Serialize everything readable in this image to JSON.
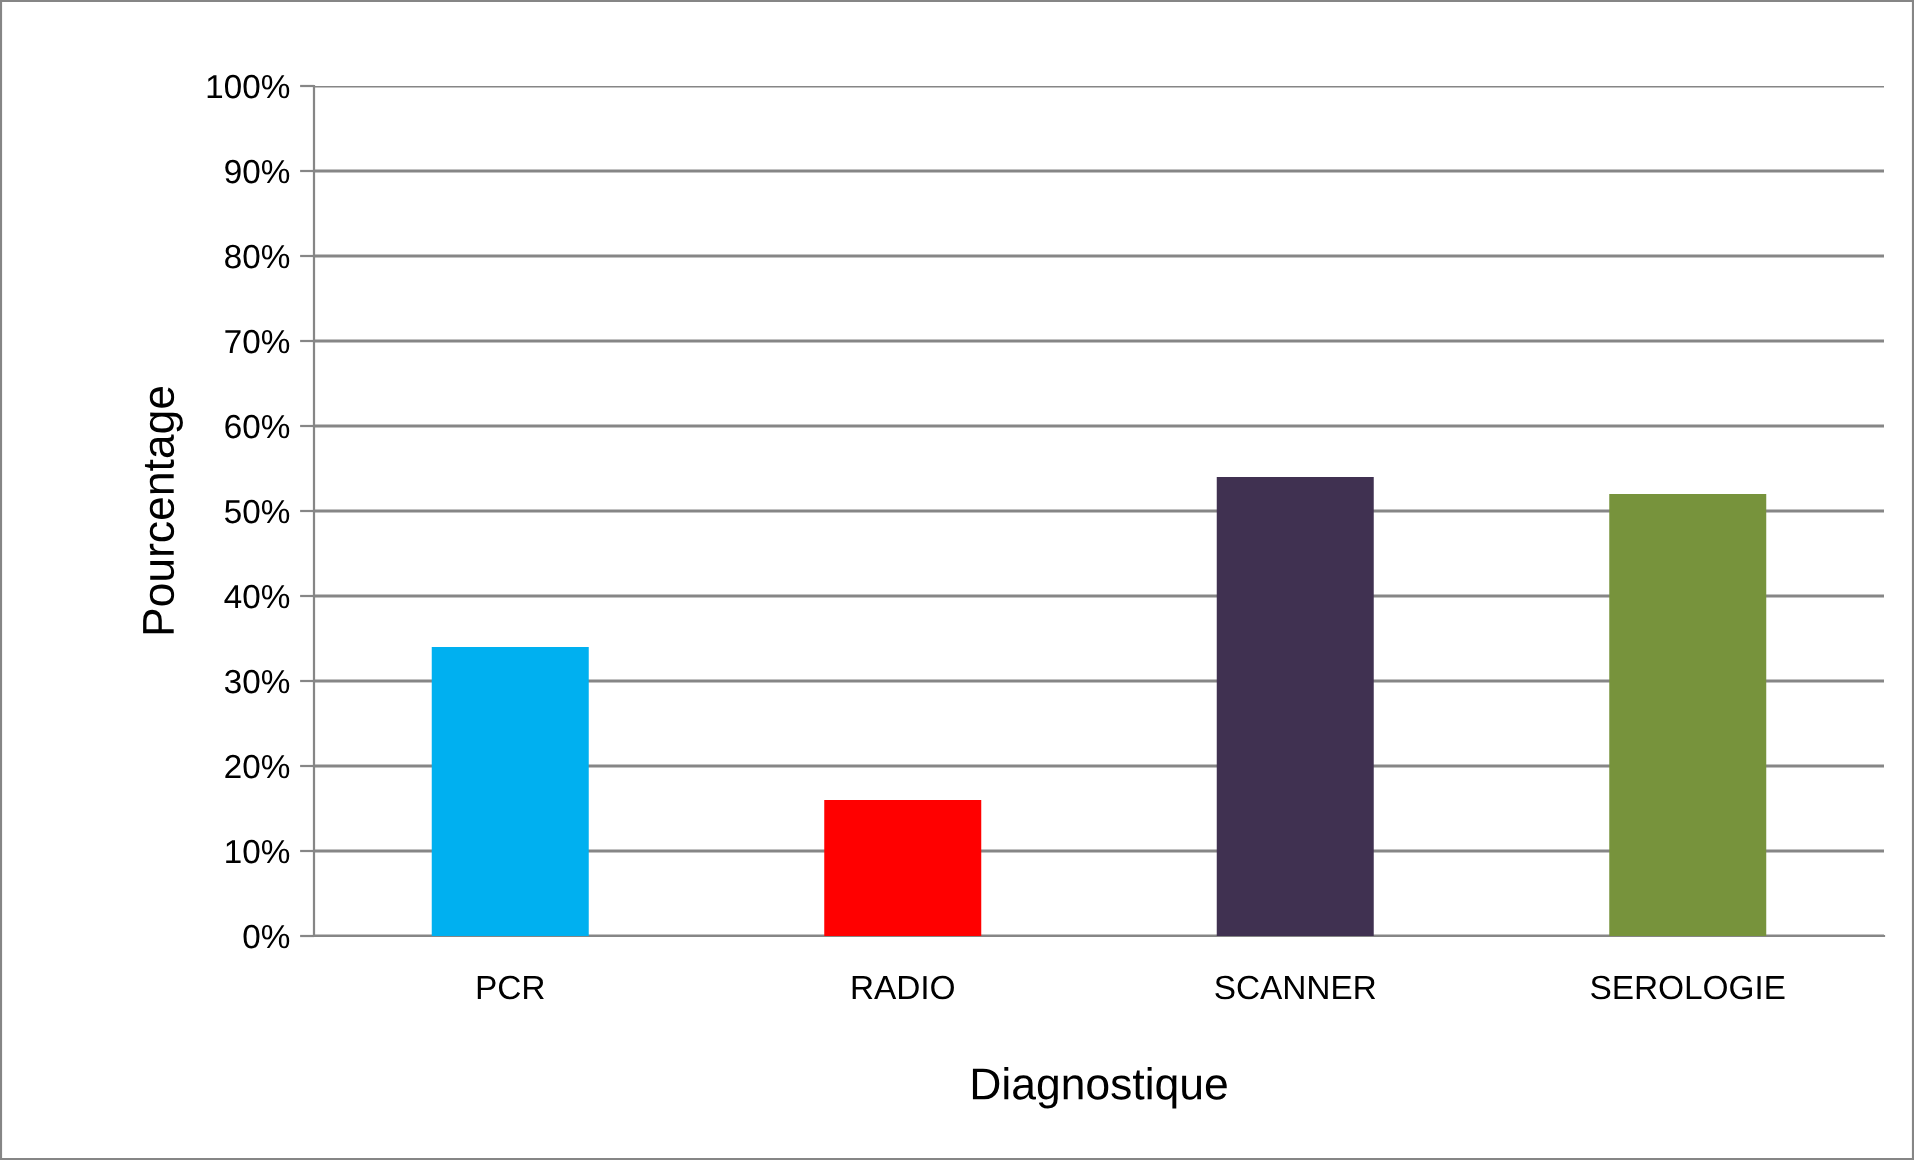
{
  "chart_data": {
    "type": "bar",
    "xlabel": "Diagnostique",
    "ylabel": "Pourcentage",
    "categories": [
      "PCR",
      "RADIO",
      "SCANNER",
      "SEROLOGIE"
    ],
    "values": [
      34,
      16,
      54,
      52
    ],
    "colors": [
      "#00b0f0",
      "#ff0000",
      "#403151",
      "#77933c"
    ],
    "ylim": [
      0,
      100
    ],
    "yticks": [
      {
        "value": 0,
        "label": "0%"
      },
      {
        "value": 10,
        "label": "10%"
      },
      {
        "value": 20,
        "label": "20%"
      },
      {
        "value": 30,
        "label": "30%"
      },
      {
        "value": 40,
        "label": "40%"
      },
      {
        "value": 50,
        "label": "50%"
      },
      {
        "value": 60,
        "label": "60%"
      },
      {
        "value": 70,
        "label": "70%"
      },
      {
        "value": 80,
        "label": "80%"
      },
      {
        "value": 90,
        "label": "90%"
      },
      {
        "value": 100,
        "label": "100%"
      }
    ],
    "grid": "y",
    "legend": false
  }
}
